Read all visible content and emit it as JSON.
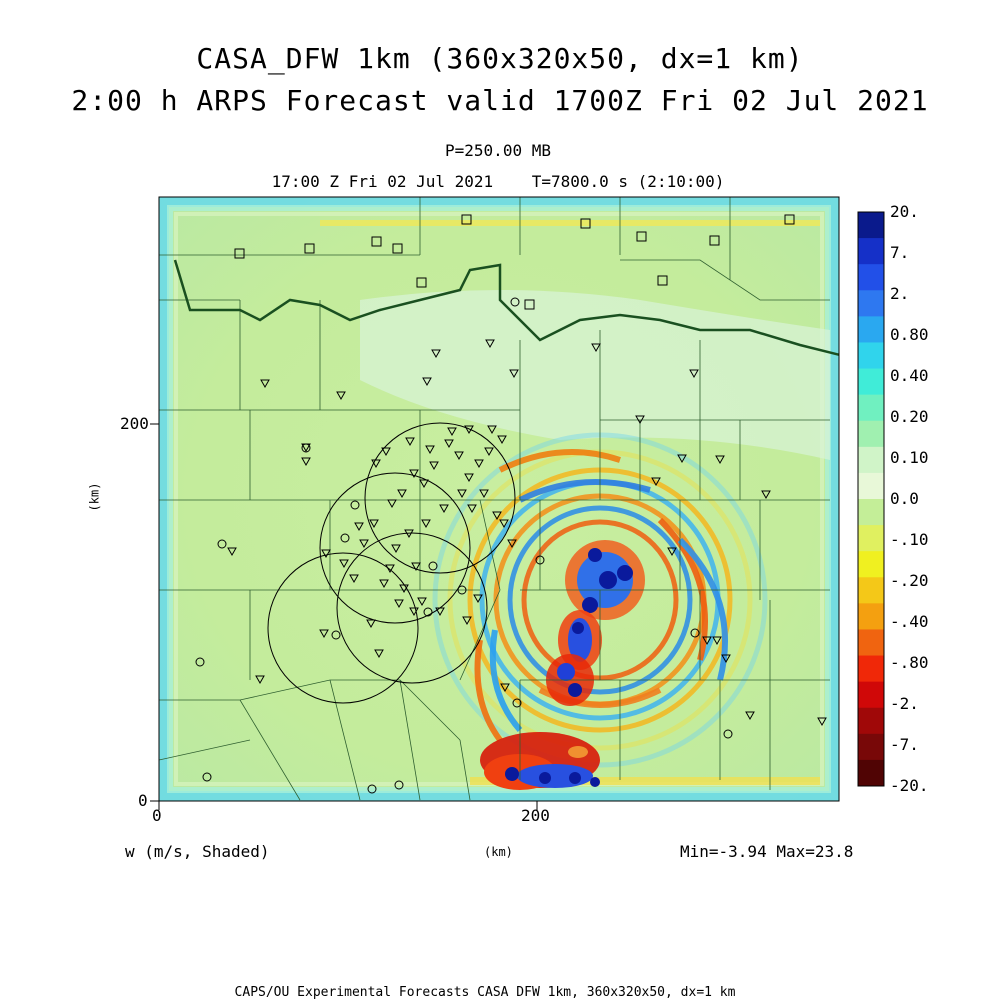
{
  "header": {
    "title_line1": "CASA_DFW 1km (360x320x50, dx=1 km)",
    "title_line2": "2:00 h ARPS Forecast valid 1700Z Fri 02 Jul 2021",
    "pressure_level": "P=250.00 MB",
    "time_line": "17:00 Z Fri 02 Jul 2021    T=7800.0 s (2:10:00)"
  },
  "axes": {
    "x_ticks": [
      "0",
      "200"
    ],
    "y_ticks": [
      "0",
      "200"
    ],
    "x_label": "(km)",
    "y_label": "(km)"
  },
  "field": {
    "variable_label": "w (m/s, Shaded)",
    "min_max": "Min=-3.94 Max=23.8"
  },
  "colorbar": {
    "labels": [
      "20.",
      "7.",
      "2.",
      "0.80",
      "0.40",
      "0.20",
      "0.10",
      "0.0",
      "-.10",
      "-.20",
      "-.40",
      "-.80",
      "-2.",
      "-7.",
      "-20."
    ],
    "colors": [
      "#0a1a8c",
      "#1530c8",
      "#2250e8",
      "#2e78f0",
      "#2aa8f0",
      "#30d4ec",
      "#40ecd8",
      "#70f0c0",
      "#a0f0b0",
      "#d0f4c8",
      "#e8f8d8",
      "#c4ee98",
      "#e0f060",
      "#f0f020",
      "#f4c818",
      "#f4a010",
      "#f06410",
      "#f02808",
      "#d00808",
      "#a00808",
      "#780808",
      "#500404"
    ]
  },
  "footer": {
    "text": "CAPS/OU Experimental Forecasts  CASA DFW 1km, 360x320x50, dx=1 km"
  }
}
